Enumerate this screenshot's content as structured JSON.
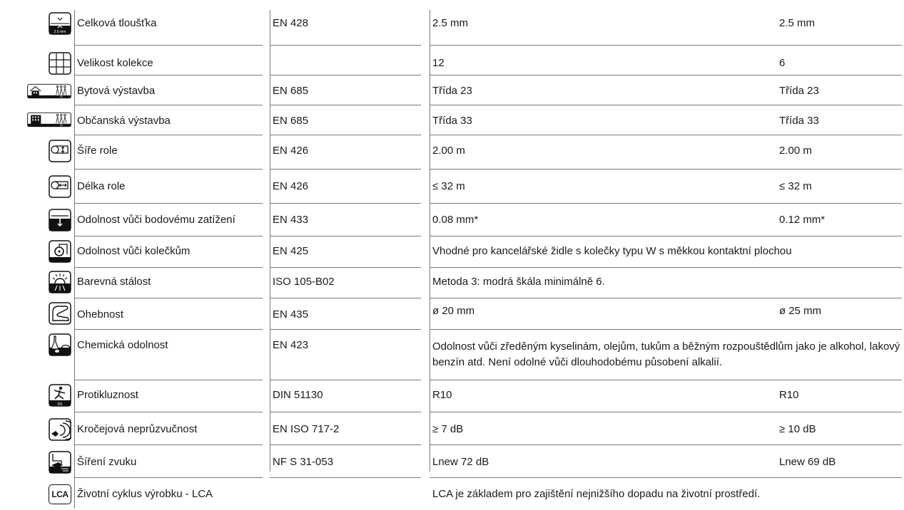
{
  "table": {
    "rows": [
      {
        "icon": "thickness-icon",
        "label": "Celková tloušťka",
        "norm": "EN 428",
        "v1": "2.5 mm",
        "v2": "2.5 mm",
        "note": ""
      },
      {
        "icon": "collection-grid-icon",
        "label": "Velikost kolekce",
        "norm": "",
        "v1": "12",
        "v2": "6",
        "note": ""
      },
      {
        "icon": "residential-use-icon",
        "label": "Bytová výstavba",
        "norm": "EN 685",
        "v1": "Třída 23",
        "v2": "Třída 23",
        "note": ""
      },
      {
        "icon": "commercial-use-icon",
        "label": "Občanská výstavba",
        "norm": "EN 685",
        "v1": "Třída 33",
        "v2": "Třída 33",
        "note": ""
      },
      {
        "icon": "roll-width-icon",
        "label": "Šíře role",
        "norm": "EN 426",
        "v1": "2.00 m",
        "v2": "2.00 m",
        "note": ""
      },
      {
        "icon": "roll-length-icon",
        "label": "Délka role",
        "norm": "EN 426",
        "v1": "≤ 32 m",
        "v2": "≤ 32 m",
        "note": ""
      },
      {
        "icon": "point-load-icon",
        "label": "Odolnost vůči bodovému zatížení",
        "norm": "EN 433",
        "v1": "0.08 mm*",
        "v2": "0.12 mm*",
        "note": ""
      },
      {
        "icon": "castor-chair-icon",
        "label": "Odolnost vůči kolečkům",
        "norm": "EN 425",
        "v1": "",
        "v2": "",
        "note": "Vhodné pro kancelářské židle s kolečky typu W s měkkou kontaktní plochou"
      },
      {
        "icon": "light-fastness-icon",
        "label": "Barevná stálost",
        "norm": "ISO 105-B02",
        "v1": "",
        "v2": "",
        "note": "Metoda 3: modrá škála minimálně 6."
      },
      {
        "icon": "flexibility-icon",
        "label": "Ohebnost",
        "norm": "EN 435",
        "v1": "ø 20 mm",
        "v2": "ø 25 mm",
        "note": ""
      },
      {
        "icon": "chemical-resistance-icon",
        "label": "Chemická odolnost",
        "norm": "EN 423",
        "v1": "",
        "v2": "",
        "note": "Odolnost vůči zředěným kyselinám, olejům, tukům a běžným rozpouštědlům jako je alkohol, lakový benzín atd. Není odolné vůči dlouhodobému působení alkalií."
      },
      {
        "icon": "slip-resistance-icon",
        "label": "Protikluznost",
        "norm": "DIN 51130",
        "v1": "R10",
        "v2": "R10",
        "note": ""
      },
      {
        "icon": "impact-sound-icon",
        "label": "Kročejová neprůzvučnost",
        "norm": "EN ISO 717-2",
        "v1": "≥ 7 dB",
        "v2": "≥ 10 dB",
        "note": ""
      },
      {
        "icon": "sound-propagation-icon",
        "label": "Šíření zvuku",
        "norm": "NF S 31-053",
        "v1": "Lnew 72 dB",
        "v2": "Lnew 69 dB",
        "note": ""
      },
      {
        "icon": "lca-icon",
        "label": "Životní cyklus výrobku - LCA",
        "norm": "",
        "v1": "",
        "v2": "",
        "note": "LCA je základem pro zajištění nejnižšího dopadu na životní prostředí."
      }
    ]
  },
  "icon_text": {
    "thickness": "2.5 mm",
    "class23": "23",
    "class33": "33",
    "slip": "DS",
    "lca": "LCA"
  }
}
